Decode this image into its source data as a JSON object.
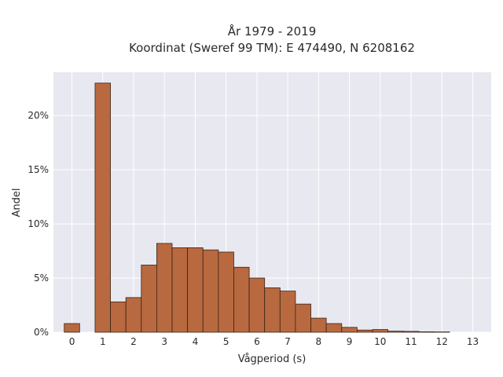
{
  "chart_data": {
    "type": "bar",
    "title_line1": "År 1979 - 2019",
    "title_line2": "Koordinat (Sweref 99 TM): E 474490, N 6208162",
    "xlabel": "Vågperiod (s)",
    "ylabel": "Andel",
    "xlim": [
      -0.6,
      13.6
    ],
    "ylim": [
      0,
      24
    ],
    "grid": true,
    "bin_width": 0.5,
    "x_ticks": [
      0,
      1,
      2,
      3,
      4,
      5,
      6,
      7,
      8,
      9,
      10,
      11,
      12,
      13
    ],
    "x_tick_labels": [
      "0",
      "1",
      "2",
      "3",
      "4",
      "5",
      "6",
      "7",
      "8",
      "9",
      "10",
      "11",
      "12",
      "13"
    ],
    "y_ticks": [
      0,
      5,
      10,
      15,
      20
    ],
    "y_tick_labels": [
      "0%",
      "5%",
      "10%",
      "15%",
      "20%"
    ],
    "bins": [
      {
        "x0": -0.25,
        "value": 0.8
      },
      {
        "x0": 0.75,
        "value": 23.0
      },
      {
        "x0": 1.25,
        "value": 2.8
      },
      {
        "x0": 1.75,
        "value": 3.2
      },
      {
        "x0": 2.25,
        "value": 6.2
      },
      {
        "x0": 2.75,
        "value": 8.2
      },
      {
        "x0": 3.25,
        "value": 7.8
      },
      {
        "x0": 3.75,
        "value": 7.8
      },
      {
        "x0": 4.25,
        "value": 7.6
      },
      {
        "x0": 4.75,
        "value": 7.4
      },
      {
        "x0": 5.25,
        "value": 6.0
      },
      {
        "x0": 5.75,
        "value": 5.0
      },
      {
        "x0": 6.25,
        "value": 4.1
      },
      {
        "x0": 6.75,
        "value": 3.8
      },
      {
        "x0": 7.25,
        "value": 2.6
      },
      {
        "x0": 7.75,
        "value": 1.3
      },
      {
        "x0": 8.25,
        "value": 0.8
      },
      {
        "x0": 8.75,
        "value": 0.45
      },
      {
        "x0": 9.25,
        "value": 0.2
      },
      {
        "x0": 9.75,
        "value": 0.25
      },
      {
        "x0": 10.25,
        "value": 0.1
      },
      {
        "x0": 10.75,
        "value": 0.08
      },
      {
        "x0": 11.25,
        "value": 0.04
      },
      {
        "x0": 11.75,
        "value": 0.03
      }
    ],
    "colors": {
      "bar_fill": "#b8693f",
      "bar_stroke": "#3a2418",
      "plot_bg": "#e8e8f0",
      "grid": "#ffffff"
    }
  }
}
